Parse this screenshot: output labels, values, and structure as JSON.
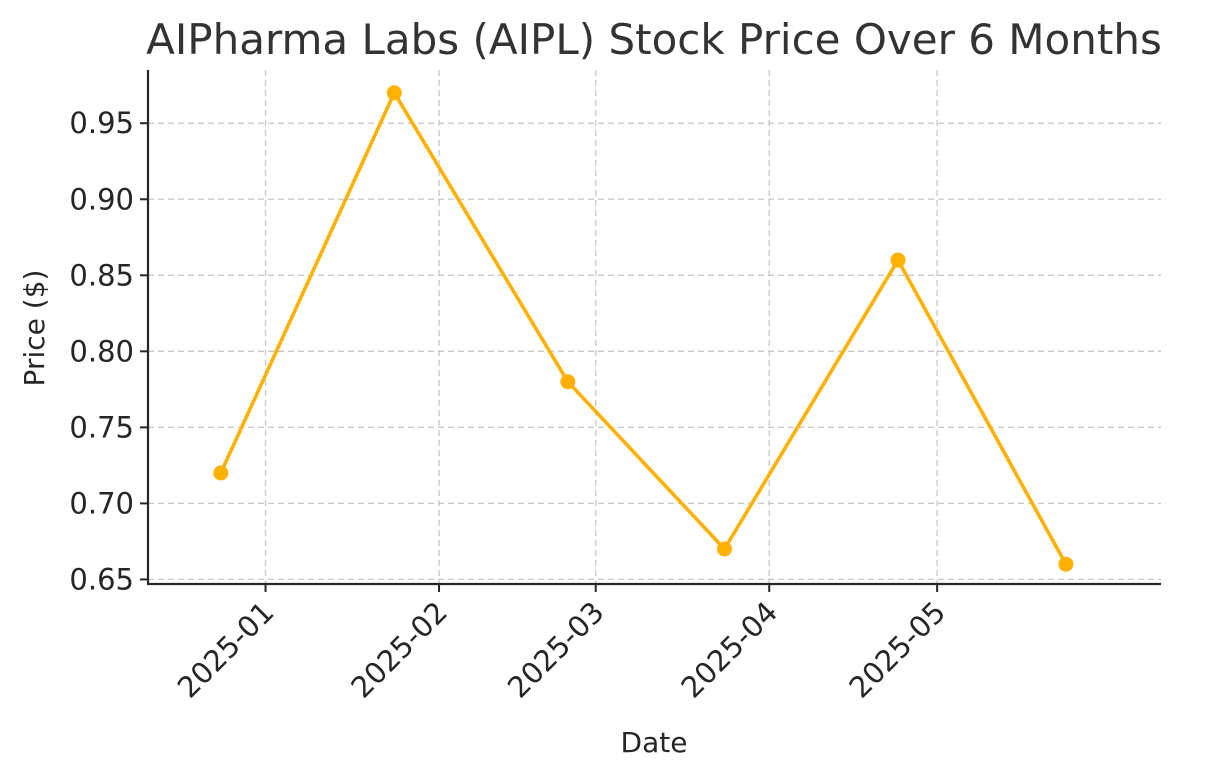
{
  "colors": {
    "series": "#FFB000",
    "background": "#ffffff",
    "grid": "#c8c8c8",
    "text": "#262626"
  },
  "chart_data": {
    "type": "line",
    "title": "AIPharma Labs (AIPL) Stock Price Over 6 Months",
    "xlabel": "Date",
    "ylabel": "Price ($)",
    "x_tick_labels": [
      "2025-01",
      "2025-02",
      "2025-03",
      "2025-04",
      "2025-05"
    ],
    "y_tick_labels": [
      "0.65",
      "0.70",
      "0.75",
      "0.80",
      "0.85",
      "0.90",
      "0.95"
    ],
    "ylim": [
      0.647,
      0.985
    ],
    "xlim": [
      "2024-12-11",
      "2025-06-10"
    ],
    "grid": true,
    "marker": "circle",
    "series": [
      {
        "x": [
          "2024-12-24",
          "2025-01-24",
          "2025-02-24",
          "2025-03-24",
          "2025-04-24",
          "2025-05-24"
        ],
        "values": [
          0.72,
          0.97,
          0.78,
          0.67,
          0.86,
          0.66
        ]
      }
    ]
  }
}
